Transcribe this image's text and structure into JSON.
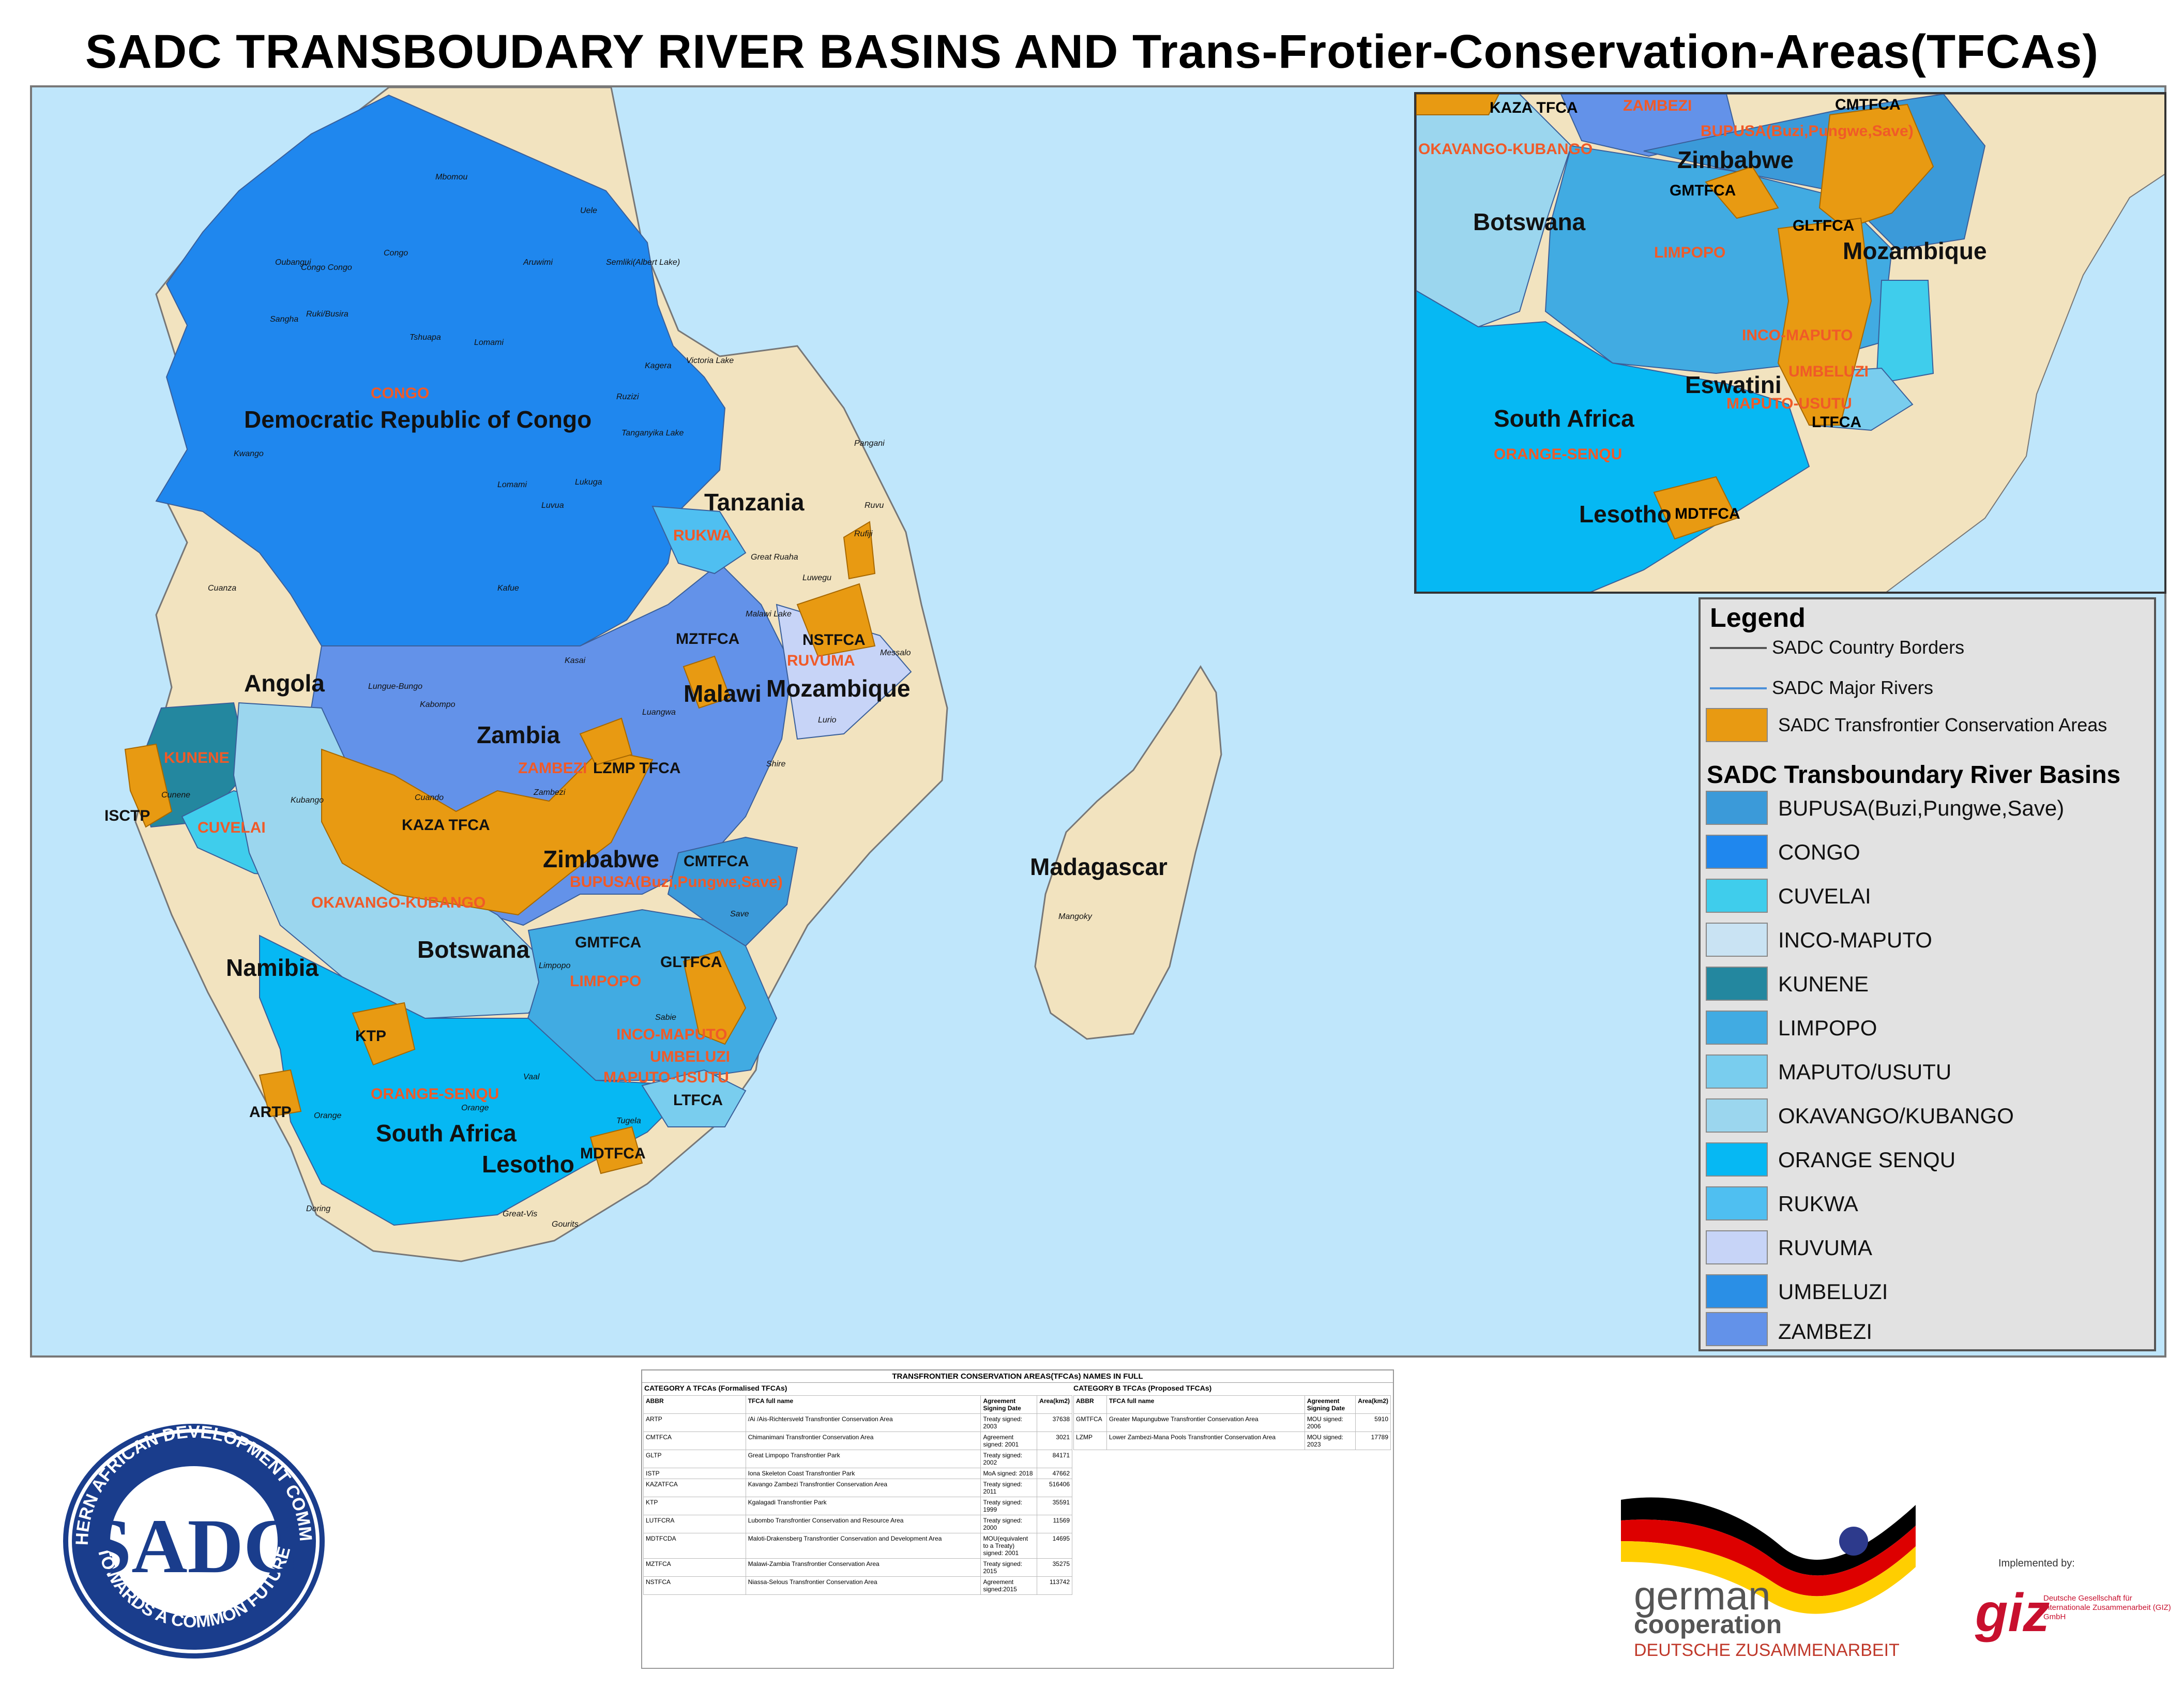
{
  "title": "SADC TRANSBOUDARY RIVER BASINS AND Trans-Frotier-Conservation-Areas(TFCAs)",
  "colors": {
    "sea": "#bfe6fb",
    "land": "#f2e3bf",
    "tfca": "#e89a12",
    "basin_label": "#f05a28",
    "BUPUSA": "#3b9ad9",
    "CONGO": "#1f87ee",
    "CUVELAI": "#3fcdec",
    "INCO-MAPUTO": "#c9e3f3",
    "KUNENE": "#23879f",
    "LIMPOPO": "#41abe2",
    "MAPUTO/USUTU": "#79cdee",
    "OKAVANGO/KUBANGO": "#9bd6ee",
    "ORANGE SENQU": "#06b8f3",
    "RUKWA": "#4fbff1",
    "RUVUMA": "#c7d4f7",
    "UMBELUZI": "#2a8fe6",
    "ZAMBEZI": "#6392e9"
  },
  "map": {
    "countries": [
      "Democratic Republic of Congo",
      "Tanzania",
      "Angola",
      "Zambia",
      "Malawi",
      "Mozambique",
      "Zimbabwe",
      "Namibia",
      "Botswana",
      "South Africa",
      "Lesotho",
      "Madagascar"
    ],
    "basin_labels": [
      "CONGO",
      "RUKWA",
      "RUVUMA",
      "KUNENE",
      "CUVELAI",
      "ZAMBEZI",
      "OKAVANGO-KUBANGO",
      "BUPUSA(Buzi,Pungwe,Save)",
      "LIMPOPO",
      "INCO-MAPUTO",
      "UMBELUZI",
      "MAPUTO-USUTU",
      "ORANGE-SENQU"
    ],
    "tfca_labels": [
      "MZTFCA",
      "NSTFCA",
      "LZMP TFCA",
      "KAZA TFCA",
      "ISCTP",
      "CMTFCA",
      "GMTFCA",
      "GLTFCA",
      "KTP",
      "LTFCA",
      "ARTP",
      "MDTFCA"
    ],
    "rivers": [
      "Mbomou",
      "Uele",
      "Congo",
      "Aruwimi",
      "Oubangui",
      "Congo Congo",
      "Ruki/Busira",
      "Tshuapa",
      "Lomami",
      "Semliki(Albert Lake)",
      "Sangha",
      "Kasai",
      "Kwango",
      "Lukuga",
      "Lomami",
      "Luvua",
      "Ruzizi",
      "Tanganyika Lake",
      "Victoria Lake",
      "Kagera",
      "Pangani",
      "Rufiji",
      "Great Ruaha",
      "Luwegu",
      "Ruvu",
      "Malawi Lake",
      "Messalo",
      "Lurio",
      "Shire",
      "Luangwa",
      "Kafue",
      "Cuanza",
      "Lungue-Bungo",
      "Kabompo",
      "Cunene",
      "Cuando",
      "Kubango",
      "Zambezi",
      "Save",
      "Limpopo",
      "Sabie",
      "Vaal",
      "Orange",
      "Orange",
      "Tugela",
      "Doring",
      "Great-Vis",
      "Gourits",
      "Mangoky"
    ]
  },
  "inset": {
    "countries": [
      "Botswana",
      "Zimbabwe",
      "Mozambique",
      "South Africa",
      "Eswatini",
      "Lesotho"
    ],
    "basin_labels": [
      "ZAMBEZI",
      "OKAVANGO-KUBANGO",
      "BUPUSA(Buzi,Pungwe,Save)",
      "LIMPOPO",
      "INCO-MAPUTO",
      "UMBELUZI",
      "MAPUTO-USUTU",
      "ORANGE-SENQU"
    ],
    "tfca_labels": [
      "KAZA TFCA",
      "CMTFCA",
      "GMTFCA",
      "GLTFCA",
      "LTFCA",
      "MDTFCA"
    ]
  },
  "legend": {
    "title": "Legend",
    "lines": [
      {
        "label": "SADC Country Borders",
        "color": "#555555"
      },
      {
        "label": "SADC Major Rivers",
        "color": "#4a90d9"
      }
    ],
    "tfca": {
      "label": "SADC Transfrontier Conservation Areas",
      "color": "#e89a12"
    },
    "basins_title": "SADC Transboundary River Basins",
    "basins": [
      {
        "label": "BUPUSA(Buzi,Pungwe,Save)",
        "color": "#3b9ad9"
      },
      {
        "label": "CONGO",
        "color": "#1f87ee"
      },
      {
        "label": "CUVELAI",
        "color": "#3fcdec"
      },
      {
        "label": "INCO-MAPUTO",
        "color": "#c9e3f3"
      },
      {
        "label": "KUNENE",
        "color": "#23879f"
      },
      {
        "label": "LIMPOPO",
        "color": "#41abe2"
      },
      {
        "label": "MAPUTO/USUTU",
        "color": "#79cdee"
      },
      {
        "label": "OKAVANGO/KUBANGO",
        "color": "#9bd6ee"
      },
      {
        "label": "ORANGE SENQU",
        "color": "#06b8f3"
      },
      {
        "label": "RUKWA",
        "color": "#4fbff1"
      },
      {
        "label": "RUVUMA",
        "color": "#c7d4f7"
      },
      {
        "label": "UMBELUZI",
        "color": "#2a8fe6"
      },
      {
        "label": "ZAMBEZI",
        "color": "#6392e9"
      }
    ]
  },
  "table": {
    "title": "TRANSFRONTIER CONSERVATION AREAS(TFCAs) NAMES IN FULL",
    "cat_a": "CATEGORY A TFCAs (Formalised TFCAs)",
    "cat_b": "CATEGORY B TFCAs (Proposed TFCAs)",
    "headers": [
      "ABBR",
      "TFCA full name",
      "Agreement Signing Date",
      "Area(km2)"
    ],
    "headers_b": [
      "ABBR",
      "TFCA full name",
      "Agreement Signing Date",
      "Area(km2)"
    ],
    "rows_a": [
      [
        "ARTP",
        "/Ai /Ais-Richtersveld Transfrontier Conservation Area",
        "Treaty signed: 2003",
        "37638"
      ],
      [
        "CMTFCA",
        "Chimanimani Transfrontier Conservation Area",
        "Agreement signed: 2001",
        "3021"
      ],
      [
        "GLTP",
        "Great Limpopo Transfrontier Park",
        "Treaty signed: 2002",
        "84171"
      ],
      [
        "ISTP",
        "Iona Skeleton Coast Transfrontier Park",
        "MoA signed: 2018",
        "47662"
      ],
      [
        "KAZATFCA",
        "Kavango Zambezi Transfrontier Conservation Area",
        "Treaty signed: 2011",
        "516406"
      ],
      [
        "KTP",
        "Kgalagadi Transfrontier Park",
        "Treaty signed: 1999",
        "35591"
      ],
      [
        "LUTFCRA",
        "Lubombo Transfrontier Conservation and Resource Area",
        "Treaty signed: 2000",
        "11569"
      ],
      [
        "MDTFCDA",
        "Maloti-Drakensberg Transfrontier Conservation and Development Area",
        "MOU(equivalent to a Treaty) signed: 2001",
        "14695"
      ],
      [
        "MZTFCA",
        "Malawi-Zambia Transfrontier Conservation Area",
        "Treaty signed: 2015",
        "35275"
      ],
      [
        "NSTFCA",
        "Niassa-Selous Transfrontier Conservation Area",
        "Agreement signed:2015",
        "113742"
      ]
    ],
    "rows_b": [
      [
        "GMTFCA",
        "Greater Mapungubwe Transfrontier Conservation Area",
        "MOU signed: 2006",
        "5910"
      ],
      [
        "LZMP",
        "Lower Zambezi-Mana Pools Transfrontier Conservation Area",
        "MOU signed: 2023",
        "17789"
      ]
    ]
  },
  "logos": {
    "sadc_ring_top": "SOUTHERN AFRICAN DEVELOPMENT COMMUNITY",
    "sadc_ring_bottom": "TOWARDS A COMMON FUTURE",
    "sadc_mark": "SADC",
    "german1": "german",
    "german2": "cooperation",
    "german3": "DEUTSCHE ZUSAMMENARBEIT",
    "implemented": "Implemented by:",
    "giz": "giz",
    "giz_sub": "Deutsche Gesellschaft für Internationale Zusammenarbeit (GIZ) GmbH"
  }
}
